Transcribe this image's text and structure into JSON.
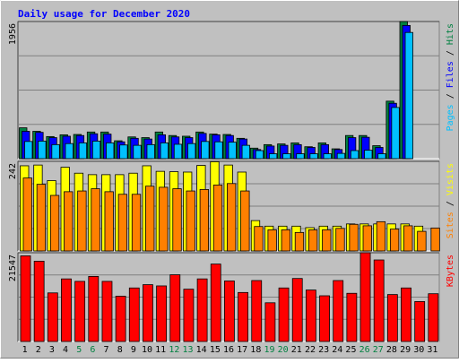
{
  "chart_data": {
    "type": "bar",
    "title": "Daily usage for December 2020",
    "categories": [
      "1",
      "2",
      "3",
      "4",
      "5",
      "6",
      "7",
      "8",
      "9",
      "10",
      "11",
      "12",
      "13",
      "14",
      "15",
      "16",
      "17",
      "18",
      "19",
      "20",
      "21",
      "22",
      "23",
      "24",
      "25",
      "26",
      "27",
      "28",
      "29",
      "30",
      "31"
    ],
    "weekend_days": [
      "5",
      "6",
      "12",
      "13",
      "19",
      "20",
      "26",
      "27"
    ],
    "panels": [
      {
        "id": "hits-files-pages",
        "ymax_label": "1956",
        "ymax": 1956,
        "legend": [
          "Pages",
          "Files",
          "Hits"
        ],
        "series": [
          {
            "name": "Hits",
            "color": "#008040",
            "values": [
              440,
              390,
              315,
              340,
              345,
              380,
              380,
              255,
              310,
              300,
              380,
              330,
              320,
              380,
              350,
              345,
              290,
              150,
              200,
              210,
              225,
              170,
              225,
              140,
              330,
              330,
              185,
              820,
              1956,
              0,
              0
            ]
          },
          {
            "name": "Files",
            "color": "#0000ff",
            "values": [
              390,
              375,
              300,
              320,
              330,
              355,
              350,
              240,
              290,
              280,
              340,
              310,
              300,
              360,
              340,
              330,
              280,
              130,
              180,
              190,
              200,
              160,
              200,
              130,
              300,
              305,
              160,
              790,
              1900,
              0,
              0
            ]
          },
          {
            "name": "Pages",
            "color": "#00c0ff",
            "values": [
              245,
              250,
              200,
              215,
              225,
              250,
              225,
              195,
              190,
              200,
              225,
              205,
              215,
              245,
              240,
              235,
              190,
              115,
              70,
              70,
              70,
              70,
              70,
              75,
              115,
              120,
              70,
              730,
              1800,
              0,
              0
            ]
          }
        ]
      },
      {
        "id": "visits-sites",
        "ymax_label": "242",
        "ymax": 242,
        "legend": [
          "Sites",
          "Visits"
        ],
        "series": [
          {
            "name": "Visits",
            "color": "#ffff00",
            "values": [
              230,
              232,
              190,
              226,
              210,
              206,
              206,
              206,
              210,
              230,
              215,
              214,
              213,
              231,
              241,
              232,
              213,
              82,
              67,
              67,
              67,
              63,
              67,
              67,
              73,
              73,
              73,
              73,
              73,
              67,
              0
            ]
          },
          {
            "name": "Sites",
            "color": "#ff8000",
            "values": [
              197,
              180,
              150,
              160,
              162,
              168,
              160,
              153,
              153,
              175,
              172,
              168,
              162,
              166,
              178,
              182,
              162,
              66,
              57,
              57,
              50,
              57,
              57,
              61,
              72,
              68,
              79,
              59,
              68,
              53,
              62
            ]
          }
        ]
      },
      {
        "id": "kbytes",
        "ymax_label": "21547",
        "ymax": 21547,
        "legend": [
          "KBytes"
        ],
        "series": [
          {
            "name": "KBytes",
            "color": "#ff0000",
            "values": [
              20800,
              19500,
              11800,
              15200,
              14600,
              15800,
              14600,
              11000,
              13000,
              13800,
              13500,
              16200,
              12700,
              15200,
              18800,
              14700,
              11900,
              14800,
              9400,
              13000,
              15300,
              12500,
              11100,
              14800,
              11700,
              21547,
              19800,
              11400,
              13000,
              9700,
              11600
            ]
          }
        ]
      }
    ]
  }
}
